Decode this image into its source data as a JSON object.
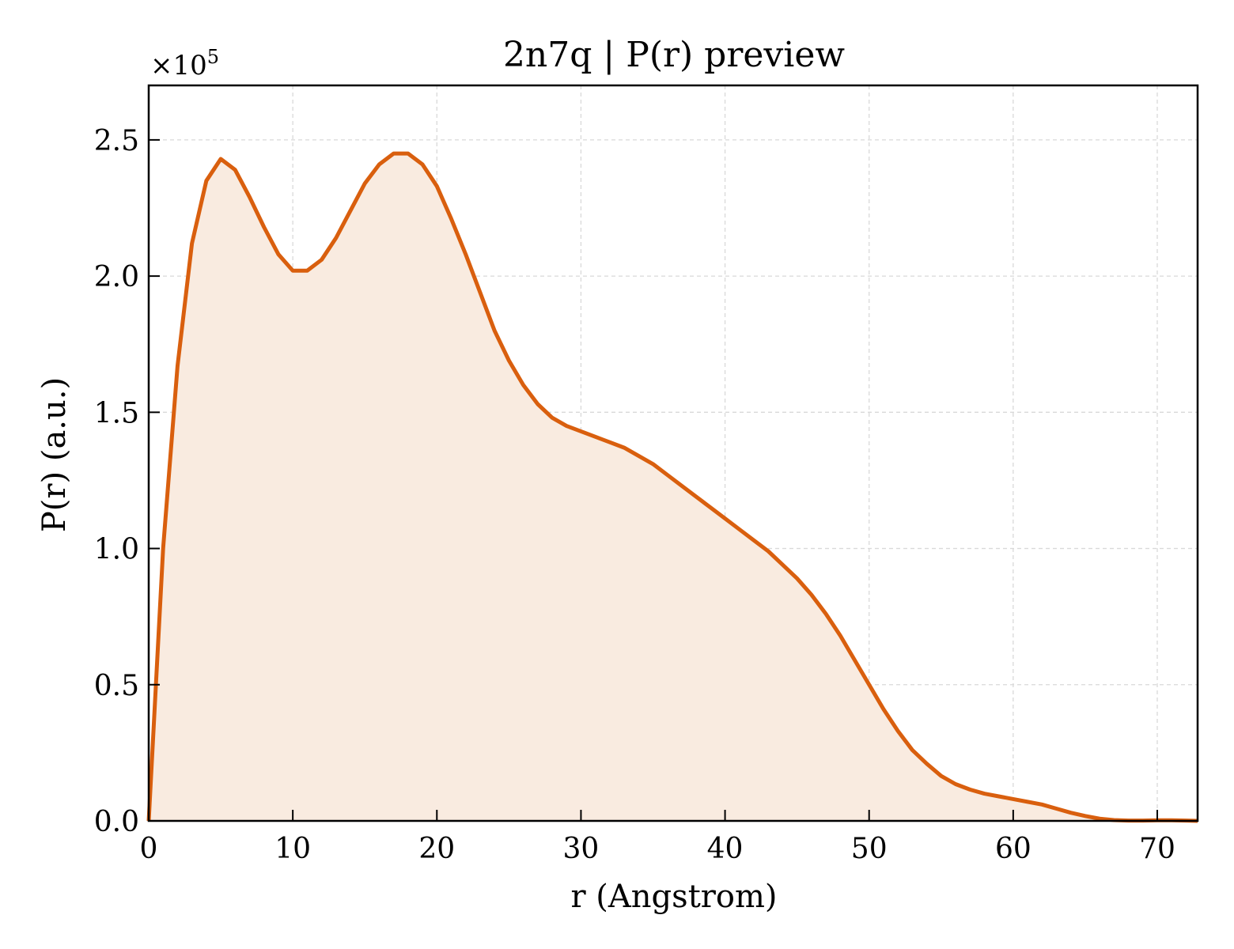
{
  "chart_data": {
    "type": "area",
    "title": "2n7q | P(r) preview",
    "xlabel": "r (Angstrom)",
    "ylabel": "P(r) (a.u.)",
    "y_multiplier_label": "×10",
    "y_multiplier_exponent": "5",
    "xlim": [
      0,
      72.8
    ],
    "ylim": [
      0,
      2.7
    ],
    "x_ticks": [
      0,
      10,
      20,
      30,
      40,
      50,
      60,
      70
    ],
    "x_tick_labels": [
      "0",
      "10",
      "20",
      "30",
      "40",
      "50",
      "60",
      "70"
    ],
    "y_ticks": [
      0,
      0.5,
      1.0,
      1.5,
      2.0,
      2.5
    ],
    "y_tick_labels": [
      "0.0",
      "0.5",
      "1.0",
      "1.5",
      "2.0",
      "2.5"
    ],
    "grid": true,
    "line_color": "#d95f0e",
    "fill_color": "#f9ebe0",
    "series": [
      {
        "x": [
          0,
          1,
          2,
          3,
          4,
          5,
          6,
          7,
          8,
          9,
          10,
          11,
          12,
          13,
          14,
          15,
          16,
          17,
          18,
          19,
          20,
          21,
          22,
          23,
          24,
          25,
          26,
          27,
          28,
          29,
          30,
          31,
          32,
          33,
          34,
          35,
          36,
          37,
          38,
          39,
          40,
          41,
          42,
          43,
          44,
          45,
          46,
          47,
          48,
          49,
          50,
          51,
          52,
          53,
          54,
          55,
          56,
          57,
          58,
          59,
          60,
          61,
          62,
          63,
          64,
          65,
          66,
          67,
          68,
          69,
          70,
          71,
          72,
          72.8
        ],
        "y": [
          0,
          1.0,
          1.67,
          2.12,
          2.35,
          2.43,
          2.39,
          2.29,
          2.18,
          2.08,
          2.02,
          2.02,
          2.06,
          2.14,
          2.24,
          2.34,
          2.41,
          2.45,
          2.45,
          2.41,
          2.33,
          2.21,
          2.08,
          1.94,
          1.8,
          1.69,
          1.6,
          1.53,
          1.48,
          1.45,
          1.43,
          1.41,
          1.39,
          1.37,
          1.34,
          1.31,
          1.27,
          1.23,
          1.19,
          1.15,
          1.11,
          1.07,
          1.03,
          0.99,
          0.94,
          0.89,
          0.83,
          0.76,
          0.68,
          0.59,
          0.5,
          0.41,
          0.33,
          0.26,
          0.21,
          0.165,
          0.135,
          0.115,
          0.1,
          0.09,
          0.08,
          0.07,
          0.06,
          0.045,
          0.03,
          0.018,
          0.008,
          0.003,
          0.001,
          0.001,
          0.002,
          0.002,
          0.001,
          0
        ]
      }
    ]
  }
}
